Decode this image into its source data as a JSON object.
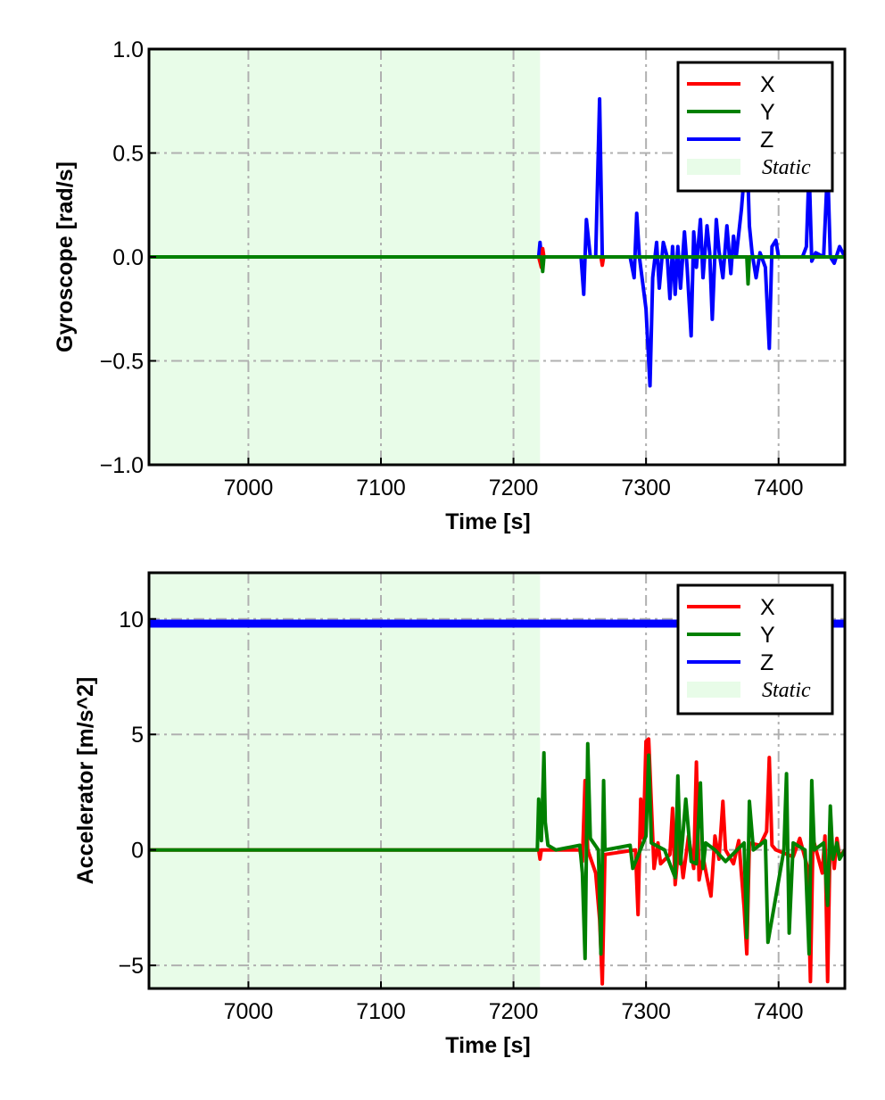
{
  "colors": {
    "x": "#ff0000",
    "y": "#008000",
    "z": "#0000ff",
    "static_fill": "#e8fce8",
    "grid": "#b0b0b0"
  },
  "chart_data": [
    {
      "type": "line",
      "xlabel": "Time [s]",
      "ylabel": "Gyroscope [rad/s]",
      "xlim": [
        6925,
        7450
      ],
      "ylim": [
        -1.0,
        1.0
      ],
      "xticks": [
        7000,
        7100,
        7200,
        7300,
        7400
      ],
      "xtick_labels": [
        "7000",
        "7100",
        "7200",
        "7300",
        "7400"
      ],
      "yticks": [
        -1.0,
        -0.5,
        0.0,
        0.5,
        1.0
      ],
      "ytick_labels": [
        "−1.0",
        "−0.5",
        "0.0",
        "0.5",
        "1.0"
      ],
      "grid": true,
      "legend_position": "top-right",
      "static_span": [
        6925,
        7220
      ],
      "static_label": "Static",
      "series": [
        {
          "name": "X",
          "color_key": "x",
          "x": [
            6925,
            7219,
            7221,
            7222,
            7223,
            7266,
            7267,
            7268,
            7450
          ],
          "y": [
            0,
            0,
            -0.05,
            0.04,
            0,
            0,
            -0.04,
            0,
            0
          ]
        },
        {
          "name": "Y",
          "color_key": "y",
          "x": [
            6925,
            7221,
            7222,
            7223,
            7376,
            7377,
            7378,
            7379,
            7450
          ],
          "y": [
            0,
            0,
            -0.07,
            0,
            0,
            -0.13,
            0,
            0,
            0
          ]
        },
        {
          "name": "Z",
          "color_key": "z",
          "x": [
            6925,
            7219,
            7220,
            7221,
            7251,
            7253,
            7255,
            7258,
            7262,
            7265,
            7267,
            7269,
            7272,
            7288,
            7291,
            7293,
            7295,
            7300,
            7303,
            7305,
            7308,
            7310,
            7313,
            7316,
            7318,
            7320,
            7322,
            7324,
            7326,
            7329,
            7331,
            7334,
            7336,
            7338,
            7341,
            7343,
            7346,
            7348,
            7350,
            7353,
            7355,
            7358,
            7361,
            7364,
            7366,
            7368,
            7372,
            7376,
            7378,
            7380,
            7383,
            7386,
            7390,
            7393,
            7395,
            7398,
            7400,
            7402,
            7418,
            7421,
            7423,
            7425,
            7428,
            7434,
            7437,
            7439,
            7442,
            7446,
            7450
          ],
          "y": [
            0,
            0,
            0.07,
            0,
            0,
            -0.18,
            0.18,
            0,
            0,
            0.76,
            0,
            0,
            0,
            0,
            -0.1,
            0.21,
            0,
            -0.25,
            -0.62,
            -0.1,
            0.07,
            -0.15,
            0.07,
            0,
            -0.2,
            0.05,
            -0.18,
            0.05,
            -0.15,
            0.12,
            -0.05,
            -0.38,
            0.12,
            -0.05,
            0.18,
            -0.1,
            0.15,
            0.02,
            -0.3,
            0.18,
            0.03,
            -0.1,
            0.15,
            -0.08,
            0.1,
            0,
            0.23,
            0.55,
            0.15,
            0.02,
            -0.1,
            0.02,
            -0.05,
            -0.44,
            0.05,
            0.08,
            0,
            0,
            0,
            0.05,
            0.43,
            -0.02,
            0.02,
            0,
            0.44,
            0,
            -0.03,
            0.05,
            0
          ]
        }
      ]
    },
    {
      "type": "line",
      "xlabel": "Time [s]",
      "ylabel": "Accelerator [m/s^2]",
      "xlim": [
        6925,
        7450
      ],
      "ylim": [
        -6,
        12
      ],
      "xticks": [
        7000,
        7100,
        7200,
        7300,
        7400
      ],
      "xtick_labels": [
        "7000",
        "7100",
        "7200",
        "7300",
        "7400"
      ],
      "yticks": [
        -5,
        0,
        5,
        10
      ],
      "ytick_labels": [
        "−5",
        "0",
        "5",
        "10"
      ],
      "grid": true,
      "legend_position": "top-right",
      "static_span": [
        6925,
        7220
      ],
      "static_label": "Static",
      "series": [
        {
          "name": "X",
          "color_key": "x",
          "x": [
            6925,
            7219,
            7220,
            7221,
            7250,
            7252,
            7254,
            7256,
            7262,
            7265,
            7267,
            7269,
            7292,
            7294,
            7296,
            7298,
            7300,
            7302,
            7304,
            7306,
            7309,
            7311,
            7318,
            7320,
            7322,
            7325,
            7328,
            7332,
            7336,
            7338,
            7340,
            7343,
            7346,
            7349,
            7352,
            7355,
            7358,
            7360,
            7366,
            7370,
            7374,
            7376,
            7378,
            7386,
            7391,
            7393,
            7395,
            7398,
            7411,
            7416,
            7422,
            7424,
            7426,
            7433,
            7435,
            7437,
            7439,
            7442,
            7444,
            7446,
            7450
          ],
          "y": [
            0,
            0,
            -0.4,
            0,
            0,
            -0.5,
            3.0,
            0,
            -1.0,
            -3.0,
            -5.8,
            -0.2,
            0,
            -2.8,
            2.2,
            0.5,
            4.7,
            4.8,
            2.0,
            -0.8,
            0.3,
            -0.6,
            -0.2,
            1.8,
            -1.5,
            0.4,
            -1.2,
            0.6,
            -0.8,
            3.8,
            -1.3,
            -0.3,
            -1.2,
            -2.0,
            0.6,
            -0.4,
            2.1,
            0,
            -0.6,
            0.4,
            -2.5,
            -4.5,
            0.3,
            0.2,
            0.8,
            4.0,
            0.2,
            0,
            -0.3,
            0.5,
            -0.8,
            -5.7,
            0.5,
            -1.0,
            0.6,
            -5.7,
            1.0,
            -0.8,
            0.5,
            -0.3,
            0
          ]
        },
        {
          "name": "Y",
          "color_key": "y",
          "x": [
            6925,
            7218,
            7219,
            7221,
            7223,
            7224,
            7226,
            7232,
            7250,
            7252,
            7254,
            7256,
            7258,
            7264,
            7266,
            7268,
            7269,
            7288,
            7290,
            7300,
            7302,
            7304,
            7314,
            7322,
            7324,
            7326,
            7330,
            7334,
            7338,
            7341,
            7343,
            7345,
            7352,
            7360,
            7374,
            7376,
            7378,
            7381,
            7390,
            7392,
            7404,
            7406,
            7408,
            7411,
            7420,
            7423,
            7425,
            7427,
            7434,
            7437,
            7439,
            7441,
            7444,
            7446,
            7450
          ],
          "y": [
            0,
            0,
            2.2,
            0.4,
            4.2,
            1.2,
            0.2,
            0,
            0.2,
            -1.0,
            -4.7,
            4.6,
            0.5,
            0,
            -4.5,
            3.0,
            0,
            0.2,
            -0.8,
            0.6,
            4.1,
            0.3,
            0,
            -1.2,
            3.2,
            -0.6,
            2.2,
            -0.5,
            -0.6,
            2.9,
            -0.8,
            0.3,
            0,
            -0.5,
            0.3,
            -3.8,
            2.1,
            0,
            0.4,
            -4.0,
            0,
            3.3,
            -3.6,
            0.3,
            0,
            -4.5,
            3.0,
            0,
            0.3,
            -2.4,
            1.9,
            -0.4,
            0.3,
            -0.4,
            0
          ]
        },
        {
          "name": "Z",
          "color_key": "z",
          "x": [
            6925,
            7450
          ],
          "y": [
            9.8,
            9.8
          ]
        }
      ]
    }
  ]
}
